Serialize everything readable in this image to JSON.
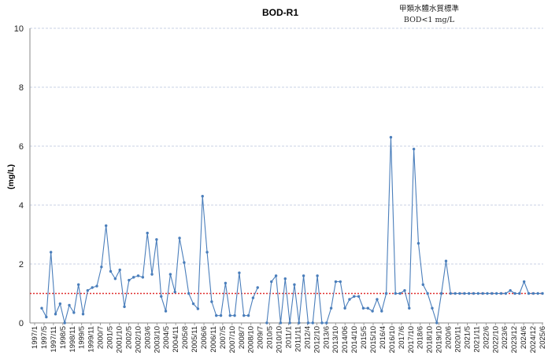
{
  "chart_data": {
    "type": "line",
    "title": "BOD-R1",
    "annotation": [
      "甲類水體水質標準",
      "BOD<1 mg/L"
    ],
    "ylabel": "(mg/L)",
    "xlabel": "",
    "ylim": [
      0,
      10
    ],
    "yticks": [
      0,
      2,
      4,
      6,
      8,
      10
    ],
    "grid": true,
    "legend": "none",
    "standard_line": {
      "value": 1,
      "color": "#e03030",
      "style": "dotted"
    },
    "series_color": "#4a7ebb",
    "xticks": [
      "1997/1",
      "1997/5",
      "1997/11",
      "1998/5",
      "1998/11",
      "1999/5",
      "1999/11",
      "2000/7",
      "2001/5",
      "2001/10",
      "2002/5",
      "2002/10",
      "2003/6",
      "2003/10",
      "2004/5",
      "2004/11",
      "2005/8",
      "2005/11",
      "2006/6",
      "2006/11",
      "2007/5",
      "2007/10",
      "2008/7",
      "2008/10",
      "2009/7",
      "2010/5",
      "2010/10",
      "2011/1",
      "2011/11",
      "2012/4",
      "2012/10",
      "2013/6",
      "2013/10",
      "2014/06",
      "2014/10",
      "2015/5",
      "2015/10",
      "2016/4",
      "2016/10",
      "2017/6",
      "2017/10",
      "2018/6",
      "2018/10",
      "2019/10",
      "2020/6",
      "2020/11",
      "2021/5",
      "2021/11",
      "2022/6",
      "2022/10",
      "2023/6",
      "2023/12",
      "2024/6",
      "2024/12",
      "2025/6"
    ],
    "values": [
      0.5,
      0.2,
      2.4,
      0.3,
      0.65,
      0.0,
      0.6,
      0.35,
      1.3,
      0.3,
      1.1,
      1.2,
      1.25,
      1.9,
      3.3,
      1.75,
      1.5,
      1.8,
      0.55,
      1.45,
      1.55,
      1.6,
      1.55,
      3.05,
      1.65,
      2.83,
      0.9,
      0.4,
      1.65,
      1.05,
      2.88,
      2.05,
      1.0,
      0.65,
      0.48,
      4.3,
      2.4,
      0.72,
      0.25,
      0.25,
      1.35,
      0.25,
      0.25,
      1.7,
      0.25,
      0.25,
      0.85,
      1.2,
      null,
      0.0,
      1.4,
      1.6,
      0.0,
      1.5,
      0.0,
      1.3,
      0.0,
      1.6,
      0.0,
      0.0,
      1.6,
      0.0,
      0.0,
      0.5,
      1.4,
      1.4,
      0.5,
      0.8,
      0.9,
      0.9,
      0.5,
      0.5,
      0.4,
      0.8,
      0.4,
      1.0,
      6.3,
      1.0,
      1.0,
      1.1,
      0.5,
      5.9,
      2.7,
      1.3,
      1.0,
      0.5,
      0.0,
      1.0,
      2.1,
      1.0,
      1.0,
      1.0,
      1.0,
      1.0,
      1.0,
      1.0,
      1.0,
      1.0,
      1.0,
      1.0,
      1.0,
      1.0,
      1.1,
      1.0,
      1.0,
      1.4,
      1.0,
      1.0,
      1.0,
      1.0
    ]
  }
}
